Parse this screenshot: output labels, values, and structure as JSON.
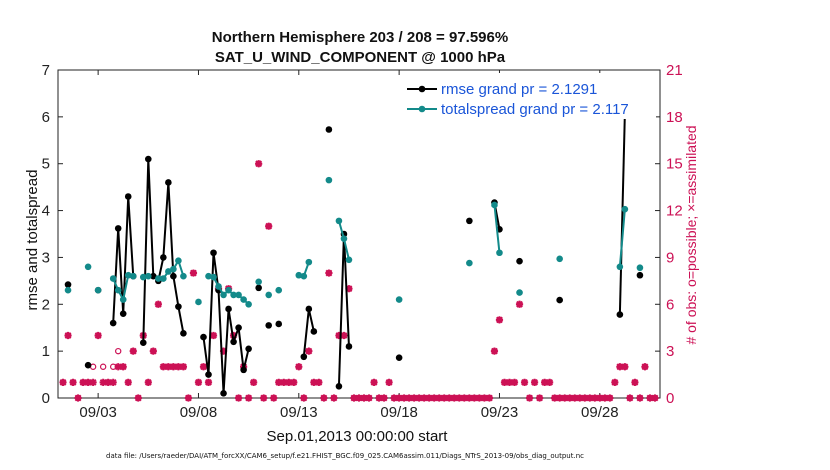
{
  "chart_data": {
    "type": "line",
    "title": "Northern Hemisphere 203 / 208 = 97.596%",
    "subtitle": "SAT_U_WIND_COMPONENT @ 1000 hPa",
    "xlabel": "Sep.01,2013 00:00:00 start",
    "ylabel": "rmse and totalspread",
    "y2label": "# of obs: o=possible; ×=assimilated",
    "xlim": [
      1,
      31
    ],
    "ylim": [
      0,
      7
    ],
    "y2lim": [
      0,
      21
    ],
    "x_ticks": [
      3,
      8,
      13,
      18,
      23,
      28
    ],
    "x_tick_labels": [
      "09/03",
      "09/08",
      "09/13",
      "09/18",
      "09/23",
      "09/28"
    ],
    "y_ticks": [
      0,
      1,
      2,
      3,
      4,
      5,
      6,
      7
    ],
    "y2_ticks": [
      0,
      3,
      6,
      9,
      12,
      15,
      18,
      21
    ],
    "footnote": "data file: /Users/raeder/DAI/ATM_forcXX/CAM6_setup/f.e21.FHIST_BGC.f09_025.CAM6assim.011/Diags_NTrS_2013-09/obs_diag_output.nc",
    "series": [
      {
        "name": "rmse",
        "legend": "rmse grand pr = 2.1291",
        "color": "#000000",
        "segments": [
          [
            [
              1.5,
              2.42
            ]
          ],
          [
            [
              2.5,
              0.7
            ]
          ],
          [
            [
              3.0,
              2.3
            ]
          ],
          [
            [
              3.75,
              1.6
            ],
            [
              4.0,
              3.62
            ],
            [
              4.25,
              1.8
            ],
            [
              4.5,
              4.3
            ],
            [
              4.75,
              2.6
            ]
          ],
          [
            [
              5.25,
              1.18
            ],
            [
              5.5,
              5.1
            ],
            [
              5.75,
              2.6
            ]
          ],
          [
            [
              6.0,
              2.5
            ],
            [
              6.25,
              3.0
            ],
            [
              6.5,
              4.6
            ],
            [
              6.75,
              2.6
            ],
            [
              7.0,
              1.95
            ],
            [
              7.25,
              1.38
            ]
          ],
          [
            [
              8.25,
              1.3
            ],
            [
              8.5,
              0.5
            ],
            [
              8.75,
              3.1
            ],
            [
              9.0,
              2.3
            ],
            [
              9.25,
              0.1
            ],
            [
              9.5,
              1.9
            ],
            [
              9.75,
              1.2
            ],
            [
              10.0,
              1.5
            ],
            [
              10.25,
              0.6
            ],
            [
              10.5,
              1.05
            ]
          ],
          [
            [
              11.0,
              2.35
            ]
          ],
          [
            [
              11.5,
              1.55
            ]
          ],
          [
            [
              12.0,
              1.58
            ]
          ],
          [
            [
              13.25,
              0.88
            ],
            [
              13.5,
              1.9
            ],
            [
              13.75,
              1.42
            ]
          ],
          [
            [
              14.5,
              5.73
            ]
          ],
          [
            [
              15.0,
              0.25
            ],
            [
              15.25,
              3.5
            ],
            [
              15.5,
              1.1
            ]
          ],
          [
            [
              18.0,
              0.86
            ]
          ],
          [
            [
              21.5,
              3.78
            ]
          ],
          [
            [
              22.75,
              4.17
            ],
            [
              23.0,
              3.6
            ]
          ],
          [
            [
              24.0,
              2.92
            ]
          ],
          [
            [
              26.0,
              2.09
            ]
          ],
          [
            [
              29.0,
              1.78
            ],
            [
              29.25,
              6.08
            ]
          ],
          [
            [
              30.0,
              2.62
            ]
          ]
        ]
      },
      {
        "name": "totalspread",
        "legend": "totalspread grand pr = 2.117",
        "color": "#138a8a",
        "segments": [
          [
            [
              1.5,
              2.3
            ]
          ],
          [
            [
              2.5,
              2.8
            ]
          ],
          [
            [
              3.0,
              2.3
            ]
          ],
          [
            [
              3.75,
              2.55
            ],
            [
              4.0,
              2.3
            ],
            [
              4.25,
              2.1
            ],
            [
              4.5,
              2.62
            ],
            [
              4.75,
              2.6
            ]
          ],
          [
            [
              5.25,
              2.58
            ],
            [
              5.5,
              2.6
            ]
          ],
          [
            [
              6.0,
              2.55
            ],
            [
              6.25,
              2.55
            ],
            [
              6.5,
              2.7
            ],
            [
              6.75,
              2.75
            ],
            [
              7.0,
              2.93
            ],
            [
              7.25,
              2.6
            ]
          ],
          [
            [
              8.0,
              2.05
            ]
          ],
          [
            [
              8.5,
              2.6
            ],
            [
              8.75,
              2.58
            ],
            [
              9.0,
              2.38
            ],
            [
              9.25,
              2.2
            ],
            [
              9.5,
              2.3
            ],
            [
              9.75,
              2.2
            ],
            [
              10.0,
              2.2
            ],
            [
              10.25,
              2.1
            ],
            [
              10.5,
              2.0
            ]
          ],
          [
            [
              11.0,
              2.48
            ]
          ],
          [
            [
              11.5,
              2.2
            ]
          ],
          [
            [
              12.0,
              2.3
            ]
          ],
          [
            [
              13.0,
              2.62
            ],
            [
              13.25,
              2.6
            ],
            [
              13.5,
              2.9
            ]
          ],
          [
            [
              14.5,
              4.65
            ]
          ],
          [
            [
              15.0,
              3.78
            ],
            [
              15.25,
              3.4
            ],
            [
              15.5,
              2.95
            ]
          ],
          [
            [
              18.0,
              2.1
            ]
          ],
          [
            [
              21.5,
              2.88
            ]
          ],
          [
            [
              22.75,
              4.12
            ],
            [
              23.0,
              3.1
            ]
          ],
          [
            [
              24.0,
              2.25
            ]
          ],
          [
            [
              26.0,
              2.97
            ]
          ],
          [
            [
              29.0,
              2.8
            ],
            [
              29.25,
              4.03
            ]
          ],
          [
            [
              30.0,
              2.78
            ]
          ]
        ]
      }
    ],
    "obs_possible": [
      [
        1.25,
        1
      ],
      [
        1.5,
        4
      ],
      [
        1.75,
        1
      ],
      [
        2.0,
        0
      ],
      [
        2.25,
        1
      ],
      [
        2.5,
        1
      ],
      [
        2.75,
        2
      ],
      [
        3.0,
        4
      ],
      [
        3.25,
        2
      ],
      [
        3.5,
        1
      ],
      [
        3.75,
        2
      ],
      [
        4.0,
        3
      ],
      [
        4.25,
        2
      ],
      [
        4.5,
        1
      ],
      [
        4.75,
        3
      ],
      [
        5.0,
        0
      ],
      [
        5.25,
        4
      ],
      [
        5.5,
        1
      ],
      [
        5.75,
        3
      ],
      [
        6.0,
        6
      ],
      [
        6.25,
        2
      ],
      [
        6.5,
        2
      ],
      [
        6.75,
        2
      ],
      [
        7.0,
        2
      ],
      [
        7.25,
        2
      ],
      [
        7.5,
        0
      ],
      [
        7.75,
        8
      ],
      [
        8.0,
        1
      ],
      [
        8.25,
        2
      ],
      [
        8.5,
        1
      ],
      [
        8.75,
        4
      ],
      [
        9.0,
        7
      ],
      [
        9.25,
        3
      ],
      [
        9.5,
        7
      ],
      [
        9.75,
        4
      ],
      [
        10.0,
        0
      ],
      [
        10.25,
        2
      ],
      [
        10.5,
        0
      ],
      [
        10.75,
        1
      ],
      [
        11.0,
        15
      ],
      [
        11.25,
        0
      ],
      [
        11.5,
        11
      ],
      [
        11.75,
        0
      ],
      [
        12.0,
        1
      ],
      [
        12.25,
        1
      ],
      [
        12.5,
        1
      ],
      [
        12.75,
        1
      ],
      [
        13.0,
        2
      ],
      [
        13.25,
        0
      ],
      [
        13.5,
        3
      ],
      [
        13.75,
        1
      ],
      [
        14.0,
        1
      ],
      [
        14.25,
        0
      ],
      [
        14.5,
        8
      ],
      [
        14.75,
        0
      ],
      [
        15.0,
        4
      ],
      [
        15.25,
        4
      ],
      [
        15.5,
        7
      ],
      [
        15.75,
        0
      ],
      [
        16.0,
        0
      ],
      [
        16.25,
        0
      ],
      [
        16.5,
        0
      ],
      [
        16.75,
        1
      ],
      [
        17.0,
        0
      ],
      [
        17.25,
        0
      ],
      [
        17.5,
        1
      ],
      [
        17.75,
        0
      ],
      [
        18.0,
        0
      ],
      [
        18.25,
        0
      ],
      [
        18.5,
        0
      ],
      [
        18.75,
        0
      ],
      [
        19.0,
        0
      ],
      [
        19.25,
        0
      ],
      [
        19.5,
        0
      ],
      [
        19.75,
        0
      ],
      [
        20.0,
        0
      ],
      [
        20.25,
        0
      ],
      [
        20.5,
        0
      ],
      [
        20.75,
        0
      ],
      [
        21.0,
        0
      ],
      [
        21.25,
        0
      ],
      [
        21.5,
        0
      ],
      [
        21.75,
        0
      ],
      [
        22.0,
        0
      ],
      [
        22.25,
        0
      ],
      [
        22.5,
        0
      ],
      [
        22.75,
        3
      ],
      [
        23.0,
        5
      ],
      [
        23.25,
        1
      ],
      [
        23.5,
        1
      ],
      [
        23.75,
        1
      ],
      [
        24.0,
        6
      ],
      [
        24.25,
        1
      ],
      [
        24.5,
        0
      ],
      [
        24.75,
        1
      ],
      [
        25.0,
        0
      ],
      [
        25.25,
        1
      ],
      [
        25.5,
        1
      ],
      [
        25.75,
        0
      ],
      [
        26.0,
        0
      ],
      [
        26.25,
        0
      ],
      [
        26.5,
        0
      ],
      [
        26.75,
        0
      ],
      [
        27.0,
        0
      ],
      [
        27.25,
        0
      ],
      [
        27.5,
        0
      ],
      [
        27.75,
        0
      ],
      [
        28.0,
        0
      ],
      [
        28.25,
        0
      ],
      [
        28.5,
        0
      ],
      [
        28.75,
        1
      ],
      [
        29.0,
        2
      ],
      [
        29.25,
        2
      ],
      [
        29.5,
        0
      ],
      [
        29.75,
        1
      ],
      [
        30.0,
        0
      ],
      [
        30.25,
        2
      ],
      [
        30.5,
        0
      ],
      [
        30.75,
        0
      ]
    ],
    "obs_assimilated": [
      [
        1.25,
        1
      ],
      [
        1.5,
        4
      ],
      [
        1.75,
        1
      ],
      [
        2.0,
        0
      ],
      [
        2.25,
        1
      ],
      [
        2.5,
        1
      ],
      [
        2.75,
        1
      ],
      [
        3.0,
        4
      ],
      [
        3.25,
        1
      ],
      [
        3.5,
        1
      ],
      [
        3.75,
        1
      ],
      [
        4.0,
        2
      ],
      [
        4.25,
        2
      ],
      [
        4.5,
        1
      ],
      [
        4.75,
        3
      ],
      [
        5.0,
        0
      ],
      [
        5.25,
        4
      ],
      [
        5.5,
        1
      ],
      [
        5.75,
        3
      ],
      [
        6.0,
        6
      ],
      [
        6.25,
        2
      ],
      [
        6.5,
        2
      ],
      [
        6.75,
        2
      ],
      [
        7.0,
        2
      ],
      [
        7.25,
        2
      ],
      [
        7.5,
        0
      ],
      [
        7.75,
        8
      ],
      [
        8.0,
        1
      ],
      [
        8.25,
        2
      ],
      [
        8.5,
        1
      ],
      [
        8.75,
        4
      ],
      [
        9.0,
        7
      ],
      [
        9.25,
        3
      ],
      [
        9.5,
        7
      ],
      [
        9.75,
        4
      ],
      [
        10.0,
        0
      ],
      [
        10.25,
        2
      ],
      [
        10.5,
        0
      ],
      [
        10.75,
        1
      ],
      [
        11.0,
        15
      ],
      [
        11.25,
        0
      ],
      [
        11.5,
        11
      ],
      [
        11.75,
        0
      ],
      [
        12.0,
        1
      ],
      [
        12.25,
        1
      ],
      [
        12.5,
        1
      ],
      [
        12.75,
        1
      ],
      [
        13.0,
        2
      ],
      [
        13.25,
        0
      ],
      [
        13.5,
        3
      ],
      [
        13.75,
        1
      ],
      [
        14.0,
        1
      ],
      [
        14.25,
        0
      ],
      [
        14.5,
        8
      ],
      [
        14.75,
        0
      ],
      [
        15.0,
        4
      ],
      [
        15.25,
        4
      ],
      [
        15.5,
        7
      ],
      [
        15.75,
        0
      ],
      [
        16.0,
        0
      ],
      [
        16.25,
        0
      ],
      [
        16.5,
        0
      ],
      [
        16.75,
        1
      ],
      [
        17.0,
        0
      ],
      [
        17.25,
        0
      ],
      [
        17.5,
        1
      ],
      [
        17.75,
        0
      ],
      [
        18.0,
        0
      ],
      [
        18.25,
        0
      ],
      [
        18.5,
        0
      ],
      [
        18.75,
        0
      ],
      [
        19.0,
        0
      ],
      [
        19.25,
        0
      ],
      [
        19.5,
        0
      ],
      [
        19.75,
        0
      ],
      [
        20.0,
        0
      ],
      [
        20.25,
        0
      ],
      [
        20.5,
        0
      ],
      [
        20.75,
        0
      ],
      [
        21.0,
        0
      ],
      [
        21.25,
        0
      ],
      [
        21.5,
        0
      ],
      [
        21.75,
        0
      ],
      [
        22.0,
        0
      ],
      [
        22.25,
        0
      ],
      [
        22.5,
        0
      ],
      [
        22.75,
        3
      ],
      [
        23.0,
        5
      ],
      [
        23.25,
        1
      ],
      [
        23.5,
        1
      ],
      [
        23.75,
        1
      ],
      [
        24.0,
        6
      ],
      [
        24.25,
        1
      ],
      [
        24.5,
        0
      ],
      [
        24.75,
        1
      ],
      [
        25.0,
        0
      ],
      [
        25.25,
        1
      ],
      [
        25.5,
        1
      ],
      [
        25.75,
        0
      ],
      [
        26.0,
        0
      ],
      [
        26.25,
        0
      ],
      [
        26.5,
        0
      ],
      [
        26.75,
        0
      ],
      [
        27.0,
        0
      ],
      [
        27.25,
        0
      ],
      [
        27.5,
        0
      ],
      [
        27.75,
        0
      ],
      [
        28.0,
        0
      ],
      [
        28.25,
        0
      ],
      [
        28.5,
        0
      ],
      [
        28.75,
        1
      ],
      [
        29.0,
        2
      ],
      [
        29.25,
        2
      ],
      [
        29.5,
        0
      ],
      [
        29.75,
        1
      ],
      [
        30.0,
        0
      ],
      [
        30.25,
        2
      ],
      [
        30.5,
        0
      ],
      [
        30.75,
        0
      ]
    ]
  }
}
